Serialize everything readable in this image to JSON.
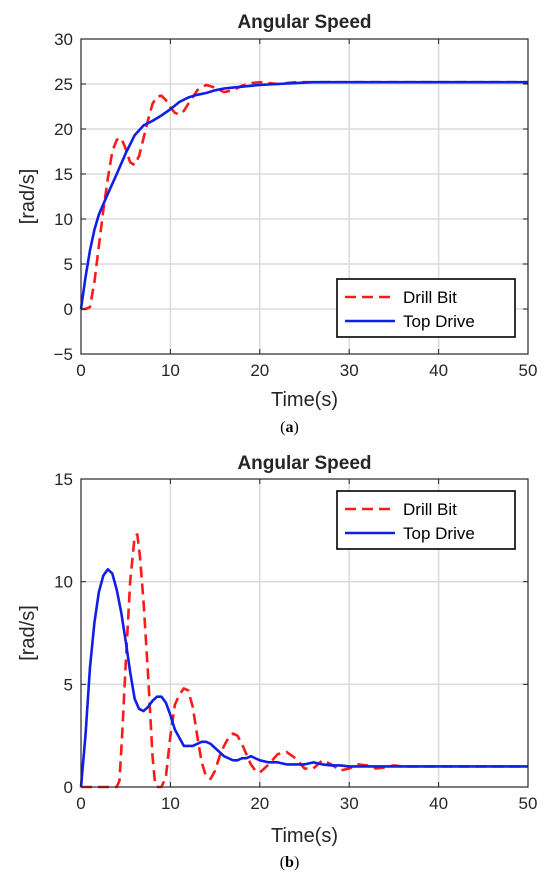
{
  "colors": {
    "drill_bit": "#ff1a1a",
    "top_drive": "#0f1fe6",
    "axis": "#262626",
    "grid": "#dcdcdc"
  },
  "chart_data": [
    {
      "type": "line",
      "title": "Angular Speed",
      "xlabel": "Time(s)",
      "ylabel": "[rad/s]",
      "xlim": [
        0,
        50
      ],
      "ylim": [
        -5,
        30
      ],
      "xticks": [
        0,
        10,
        20,
        30,
        40,
        50
      ],
      "yticks": [
        -5,
        0,
        5,
        10,
        15,
        20,
        25,
        30
      ],
      "grid": true,
      "legend": "bottom-right",
      "caption_prefix": "(",
      "caption_letter": "a",
      "caption_suffix": ")",
      "series": [
        {
          "name": "Drill Bit",
          "style": "dashed",
          "color": "#ff1a1a",
          "x": [
            0,
            0.5,
            1,
            1.5,
            2,
            2.5,
            3,
            3.5,
            4,
            4.5,
            5,
            5.5,
            6,
            6.5,
            7,
            7.5,
            8,
            8.5,
            9,
            9.5,
            10,
            10.5,
            11,
            11.5,
            12,
            13,
            14,
            15,
            16,
            17,
            18,
            19,
            20,
            21,
            22,
            23,
            24,
            25,
            26,
            28,
            30,
            35,
            40,
            45,
            50
          ],
          "y": [
            0,
            0,
            0.2,
            3,
            7,
            11,
            14.5,
            17.5,
            18.8,
            19,
            17.8,
            16.3,
            16,
            17,
            19,
            21,
            22.8,
            23.6,
            23.7,
            23.2,
            22.4,
            21.8,
            21.6,
            22,
            22.8,
            24.3,
            24.9,
            24.6,
            24.1,
            24.3,
            24.8,
            25.1,
            25.2,
            25.1,
            25,
            25.1,
            25.2,
            25.2,
            25.2,
            25.2,
            25.2,
            25.2,
            25.2,
            25.2,
            25.2
          ]
        },
        {
          "name": "Top Drive",
          "style": "solid",
          "color": "#0f1fe6",
          "x": [
            0,
            0.5,
            1,
            1.5,
            2,
            3,
            4,
            5,
            6,
            7,
            8,
            9,
            10,
            11,
            12,
            13,
            14,
            15,
            16,
            17,
            18,
            19,
            20,
            22,
            24,
            26,
            28,
            30,
            35,
            40,
            45,
            50
          ],
          "y": [
            0,
            3.5,
            6.5,
            8.8,
            10.5,
            12.8,
            15,
            17.3,
            19.3,
            20.4,
            20.9,
            21.5,
            22.2,
            23,
            23.5,
            23.8,
            24,
            24.3,
            24.5,
            24.6,
            24.7,
            24.8,
            24.9,
            25,
            25.1,
            25.2,
            25.2,
            25.2,
            25.2,
            25.2,
            25.2,
            25.2
          ]
        }
      ]
    },
    {
      "type": "line",
      "title": "Angular Speed",
      "xlabel": "Time(s)",
      "ylabel": "[rad/s]",
      "xlim": [
        0,
        50
      ],
      "ylim": [
        0,
        15
      ],
      "xticks": [
        0,
        10,
        20,
        30,
        40,
        50
      ],
      "yticks": [
        0,
        5,
        10,
        15
      ],
      "grid": true,
      "legend": "top-right",
      "caption_prefix": "(",
      "caption_letter": "b",
      "caption_suffix": ")",
      "series": [
        {
          "name": "Drill Bit",
          "style": "dashed",
          "color": "#ff1a1a",
          "x": [
            0,
            4,
            4.3,
            4.6,
            5,
            5.5,
            6,
            6.3,
            6.6,
            7,
            7.5,
            8,
            8.3,
            8.6,
            9,
            9.5,
            10,
            10.5,
            11,
            11.5,
            12,
            12.5,
            13,
            13.5,
            14,
            14.5,
            15,
            15.5,
            16,
            16.5,
            17,
            17.5,
            18,
            18.5,
            19,
            19.5,
            20,
            21,
            22,
            23,
            24,
            25,
            26,
            27,
            28,
            29,
            30,
            31,
            32,
            33,
            34,
            35,
            36,
            37,
            38,
            40,
            45,
            50
          ],
          "y": [
            0,
            0,
            0.3,
            2.5,
            6,
            10,
            12.2,
            12.3,
            11.2,
            9,
            5.5,
            1.5,
            0.1,
            0,
            0,
            0.5,
            2.5,
            4,
            4.5,
            4.8,
            4.7,
            3.9,
            2.5,
            1.2,
            0.5,
            0.4,
            0.8,
            1.5,
            2,
            2.4,
            2.6,
            2.5,
            2.1,
            1.6,
            1.1,
            0.8,
            0.7,
            1.1,
            1.6,
            1.7,
            1.4,
            0.9,
            0.9,
            1.3,
            1.1,
            0.8,
            0.9,
            1.1,
            1.05,
            0.9,
            0.95,
            1.05,
            1,
            1,
            1,
            1,
            1,
            1
          ]
        },
        {
          "name": "Top Drive",
          "style": "solid",
          "color": "#0f1fe6",
          "x": [
            0,
            0.5,
            1,
            1.5,
            2,
            2.5,
            3,
            3.5,
            4,
            4.5,
            5,
            5.5,
            6,
            6.5,
            7,
            7.5,
            8,
            8.5,
            9,
            9.5,
            10,
            10.5,
            11,
            11.5,
            12,
            12.5,
            13,
            13.5,
            14,
            14.5,
            15,
            15.5,
            16,
            16.5,
            17,
            17.5,
            18,
            18.5,
            19,
            19.5,
            20,
            21,
            22,
            23,
            24,
            25,
            26,
            27,
            28,
            29,
            30,
            32,
            34,
            36,
            38,
            40,
            45,
            50
          ],
          "y": [
            0,
            2.5,
            5.8,
            8,
            9.5,
            10.3,
            10.6,
            10.4,
            9.6,
            8.5,
            7.1,
            5.6,
            4.3,
            3.8,
            3.7,
            3.9,
            4.2,
            4.4,
            4.4,
            4.1,
            3.5,
            2.8,
            2.4,
            2,
            2,
            2,
            2.1,
            2.2,
            2.2,
            2.1,
            1.9,
            1.7,
            1.5,
            1.4,
            1.3,
            1.3,
            1.4,
            1.4,
            1.5,
            1.4,
            1.3,
            1.2,
            1.2,
            1.1,
            1.1,
            1.1,
            1.2,
            1.1,
            1.05,
            1.05,
            1,
            1,
            1,
            1,
            1,
            1,
            1,
            1
          ]
        }
      ]
    }
  ]
}
